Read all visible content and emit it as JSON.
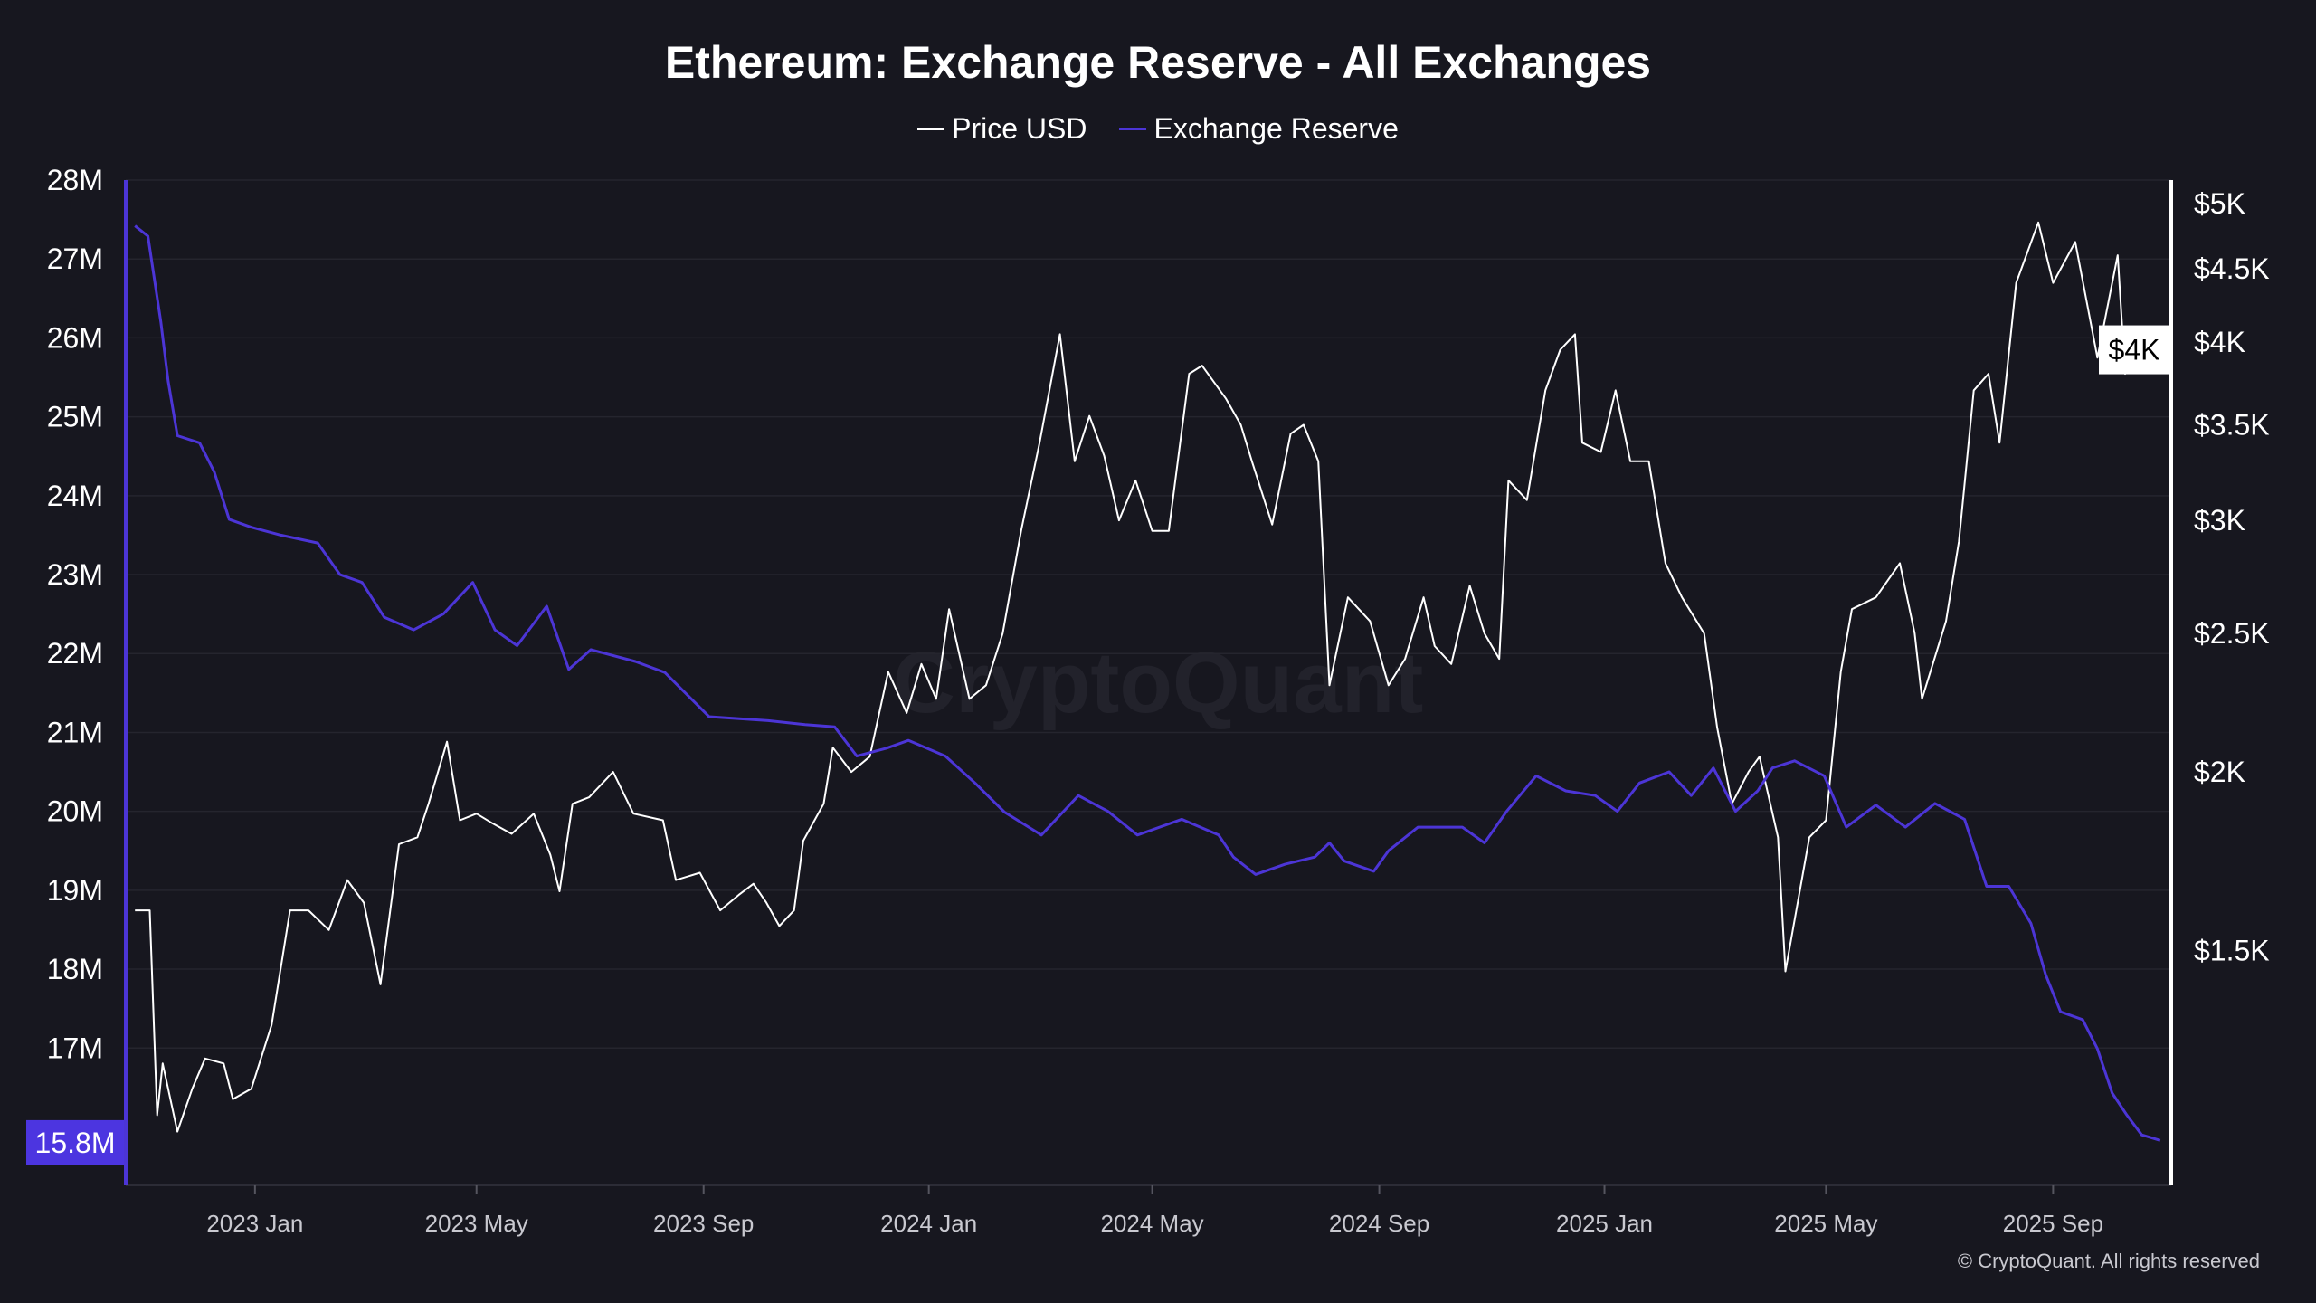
{
  "chart_data": {
    "type": "line",
    "title": "Ethereum: Exchange Reserve - All Exchanges",
    "legend_position": "top-center",
    "grid": true,
    "xlim": [
      "2022-10-23",
      "2025-11-04"
    ],
    "x_ticks": [
      {
        "date": "2023-01-01",
        "label": "2023 Jan"
      },
      {
        "date": "2023-05-01",
        "label": "2023 May"
      },
      {
        "date": "2023-09-01",
        "label": "2023 Sep"
      },
      {
        "date": "2024-01-01",
        "label": "2024 Jan"
      },
      {
        "date": "2024-05-01",
        "label": "2024 May"
      },
      {
        "date": "2024-09-01",
        "label": "2024 Sep"
      },
      {
        "date": "2025-01-01",
        "label": "2025 Jan"
      },
      {
        "date": "2025-05-01",
        "label": "2025 May"
      },
      {
        "date": "2025-09-01",
        "label": "2025 Sep"
      }
    ],
    "left_axis": {
      "series": "Exchange Reserve",
      "ylim": [
        15.26,
        28.0
      ],
      "ticks": [
        {
          "value": 28,
          "label": "28M"
        },
        {
          "value": 27,
          "label": "27M"
        },
        {
          "value": 26,
          "label": "26M"
        },
        {
          "value": 25,
          "label": "25M"
        },
        {
          "value": 24,
          "label": "24M"
        },
        {
          "value": 23,
          "label": "23M"
        },
        {
          "value": 22,
          "label": "22M"
        },
        {
          "value": 21,
          "label": "21M"
        },
        {
          "value": 20,
          "label": "20M"
        },
        {
          "value": 19,
          "label": "19M"
        },
        {
          "value": 18,
          "label": "18M"
        },
        {
          "value": 17,
          "label": "17M"
        }
      ],
      "current_label": "15.8M",
      "current_value": 15.8
    },
    "right_axis": {
      "series": "Price USD",
      "scale": "log",
      "ylim": [
        1027,
        5193
      ],
      "ticks": [
        {
          "value": 5000,
          "label": "$5K"
        },
        {
          "value": 4500,
          "label": "$4.5K"
        },
        {
          "value": 4000,
          "label": "$4K"
        },
        {
          "value": 3500,
          "label": "$3.5K"
        },
        {
          "value": 3000,
          "label": "$3K"
        },
        {
          "value": 2500,
          "label": "$2.5K"
        },
        {
          "value": 2000,
          "label": "$2K"
        },
        {
          "value": 1500,
          "label": "$1.5K"
        }
      ],
      "current_label": "$4K",
      "current_value": 3950
    },
    "series": [
      {
        "name": "Price USD",
        "color": "#ffffff",
        "axis": "right",
        "points": [
          [
            "2022-10-28",
            1600
          ],
          [
            "2022-11-05",
            1600
          ],
          [
            "2022-11-09",
            1150
          ],
          [
            "2022-11-12",
            1250
          ],
          [
            "2022-11-20",
            1120
          ],
          [
            "2022-11-28",
            1200
          ],
          [
            "2022-12-05",
            1260
          ],
          [
            "2022-12-15",
            1250
          ],
          [
            "2022-12-20",
            1180
          ],
          [
            "2022-12-30",
            1200
          ],
          [
            "2023-01-10",
            1330
          ],
          [
            "2023-01-20",
            1600
          ],
          [
            "2023-01-30",
            1600
          ],
          [
            "2023-02-10",
            1550
          ],
          [
            "2023-02-20",
            1680
          ],
          [
            "2023-03-01",
            1620
          ],
          [
            "2023-03-10",
            1420
          ],
          [
            "2023-03-20",
            1780
          ],
          [
            "2023-03-30",
            1800
          ],
          [
            "2023-04-05",
            1900
          ],
          [
            "2023-04-15",
            2100
          ],
          [
            "2023-04-22",
            1850
          ],
          [
            "2023-05-01",
            1870
          ],
          [
            "2023-05-10",
            1840
          ],
          [
            "2023-05-20",
            1810
          ],
          [
            "2023-06-01",
            1870
          ],
          [
            "2023-06-10",
            1750
          ],
          [
            "2023-06-15",
            1650
          ],
          [
            "2023-06-22",
            1900
          ],
          [
            "2023-07-01",
            1920
          ],
          [
            "2023-07-14",
            2000
          ],
          [
            "2023-07-25",
            1870
          ],
          [
            "2023-08-10",
            1850
          ],
          [
            "2023-08-17",
            1680
          ],
          [
            "2023-08-30",
            1700
          ],
          [
            "2023-09-10",
            1600
          ],
          [
            "2023-09-20",
            1640
          ],
          [
            "2023-09-28",
            1670
          ],
          [
            "2023-10-05",
            1620
          ],
          [
            "2023-10-12",
            1560
          ],
          [
            "2023-10-20",
            1600
          ],
          [
            "2023-10-25",
            1790
          ],
          [
            "2023-11-05",
            1900
          ],
          [
            "2023-11-10",
            2080
          ],
          [
            "2023-11-20",
            2000
          ],
          [
            "2023-11-30",
            2050
          ],
          [
            "2023-12-10",
            2350
          ],
          [
            "2023-12-20",
            2200
          ],
          [
            "2023-12-28",
            2380
          ],
          [
            "2024-01-05",
            2250
          ],
          [
            "2024-01-12",
            2600
          ],
          [
            "2024-01-23",
            2250
          ],
          [
            "2024-02-01",
            2300
          ],
          [
            "2024-02-10",
            2500
          ],
          [
            "2024-02-20",
            2950
          ],
          [
            "2024-03-01",
            3400
          ],
          [
            "2024-03-12",
            4050
          ],
          [
            "2024-03-20",
            3300
          ],
          [
            "2024-03-28",
            3550
          ],
          [
            "2024-04-05",
            3330
          ],
          [
            "2024-04-13",
            3000
          ],
          [
            "2024-04-22",
            3200
          ],
          [
            "2024-05-01",
            2950
          ],
          [
            "2024-05-10",
            2950
          ],
          [
            "2024-05-21",
            3800
          ],
          [
            "2024-05-28",
            3850
          ],
          [
            "2024-06-10",
            3650
          ],
          [
            "2024-06-18",
            3500
          ],
          [
            "2024-06-24",
            3300
          ],
          [
            "2024-07-05",
            2980
          ],
          [
            "2024-07-15",
            3450
          ],
          [
            "2024-07-22",
            3500
          ],
          [
            "2024-07-30",
            3300
          ],
          [
            "2024-08-05",
            2300
          ],
          [
            "2024-08-15",
            2650
          ],
          [
            "2024-08-27",
            2550
          ],
          [
            "2024-09-06",
            2300
          ],
          [
            "2024-09-15",
            2400
          ],
          [
            "2024-09-25",
            2650
          ],
          [
            "2024-10-01",
            2450
          ],
          [
            "2024-10-10",
            2380
          ],
          [
            "2024-10-20",
            2700
          ],
          [
            "2024-10-28",
            2500
          ],
          [
            "2024-11-05",
            2400
          ],
          [
            "2024-11-10",
            3200
          ],
          [
            "2024-11-20",
            3100
          ],
          [
            "2024-11-30",
            3700
          ],
          [
            "2024-12-08",
            3950
          ],
          [
            "2024-12-16",
            4050
          ],
          [
            "2024-12-20",
            3400
          ],
          [
            "2024-12-30",
            3350
          ],
          [
            "2025-01-07",
            3700
          ],
          [
            "2025-01-15",
            3300
          ],
          [
            "2025-01-25",
            3300
          ],
          [
            "2025-02-03",
            2800
          ],
          [
            "2025-02-12",
            2650
          ],
          [
            "2025-02-24",
            2500
          ],
          [
            "2025-03-03",
            2150
          ],
          [
            "2025-03-11",
            1900
          ],
          [
            "2025-03-20",
            2000
          ],
          [
            "2025-03-26",
            2050
          ],
          [
            "2025-04-05",
            1800
          ],
          [
            "2025-04-09",
            1450
          ],
          [
            "2025-04-22",
            1800
          ],
          [
            "2025-05-01",
            1850
          ],
          [
            "2025-05-09",
            2350
          ],
          [
            "2025-05-15",
            2600
          ],
          [
            "2025-05-28",
            2650
          ],
          [
            "2025-06-10",
            2800
          ],
          [
            "2025-06-18",
            2500
          ],
          [
            "2025-06-22",
            2250
          ],
          [
            "2025-07-05",
            2550
          ],
          [
            "2025-07-12",
            2900
          ],
          [
            "2025-07-20",
            3700
          ],
          [
            "2025-07-28",
            3800
          ],
          [
            "2025-08-03",
            3400
          ],
          [
            "2025-08-12",
            4400
          ],
          [
            "2025-08-24",
            4850
          ],
          [
            "2025-09-01",
            4400
          ],
          [
            "2025-09-13",
            4700
          ],
          [
            "2025-09-25",
            3900
          ],
          [
            "2025-10-06",
            4600
          ],
          [
            "2025-10-10",
            3800
          ],
          [
            "2025-10-20",
            3950
          ],
          [
            "2025-10-29",
            3950
          ]
        ]
      },
      {
        "name": "Exchange Reserve",
        "color": "#4c35d6",
        "axis": "left",
        "points": [
          [
            "2022-10-28",
            27.42
          ],
          [
            "2022-11-04",
            27.29
          ],
          [
            "2022-11-11",
            26.2
          ],
          [
            "2022-11-15",
            25.45
          ],
          [
            "2022-11-20",
            24.76
          ],
          [
            "2022-12-02",
            24.67
          ],
          [
            "2022-12-10",
            24.3
          ],
          [
            "2022-12-18",
            23.7
          ],
          [
            "2022-12-30",
            23.6
          ],
          [
            "2023-01-15",
            23.5
          ],
          [
            "2023-02-04",
            23.4
          ],
          [
            "2023-02-16",
            23.0
          ],
          [
            "2023-02-28",
            22.9
          ],
          [
            "2023-03-12",
            22.46
          ],
          [
            "2023-03-28",
            22.3
          ],
          [
            "2023-04-13",
            22.5
          ],
          [
            "2023-04-29",
            22.9
          ],
          [
            "2023-05-11",
            22.3
          ],
          [
            "2023-05-23",
            22.1
          ],
          [
            "2023-06-08",
            22.6
          ],
          [
            "2023-06-20",
            21.8
          ],
          [
            "2023-07-02",
            22.05
          ],
          [
            "2023-07-26",
            21.9
          ],
          [
            "2023-08-11",
            21.76
          ],
          [
            "2023-08-23",
            21.48
          ],
          [
            "2023-09-04",
            21.2
          ],
          [
            "2023-10-06",
            21.15
          ],
          [
            "2023-10-26",
            21.1
          ],
          [
            "2023-11-11",
            21.07
          ],
          [
            "2023-11-23",
            20.7
          ],
          [
            "2023-12-09",
            20.8
          ],
          [
            "2023-12-21",
            20.9
          ],
          [
            "2024-01-10",
            20.7
          ],
          [
            "2024-01-26",
            20.36
          ],
          [
            "2024-02-11",
            19.99
          ],
          [
            "2024-03-02",
            19.7
          ],
          [
            "2024-03-22",
            20.2
          ],
          [
            "2024-04-07",
            20.0
          ],
          [
            "2024-04-23",
            19.7
          ],
          [
            "2024-05-17",
            19.9
          ],
          [
            "2024-06-06",
            19.7
          ],
          [
            "2024-06-14",
            19.42
          ],
          [
            "2024-06-26",
            19.2
          ],
          [
            "2024-07-12",
            19.33
          ],
          [
            "2024-07-28",
            19.42
          ],
          [
            "2024-08-05",
            19.6
          ],
          [
            "2024-08-13",
            19.37
          ],
          [
            "2024-08-29",
            19.24
          ],
          [
            "2024-09-06",
            19.5
          ],
          [
            "2024-09-22",
            19.8
          ],
          [
            "2024-10-16",
            19.8
          ],
          [
            "2024-10-28",
            19.6
          ],
          [
            "2024-11-09",
            20.0
          ],
          [
            "2024-11-25",
            20.45
          ],
          [
            "2024-12-11",
            20.26
          ],
          [
            "2024-12-27",
            20.2
          ],
          [
            "2025-01-08",
            20.0
          ],
          [
            "2025-01-20",
            20.36
          ],
          [
            "2025-02-05",
            20.5
          ],
          [
            "2025-02-17",
            20.2
          ],
          [
            "2025-03-01",
            20.55
          ],
          [
            "2025-03-13",
            20.0
          ],
          [
            "2025-03-25",
            20.26
          ],
          [
            "2025-04-02",
            20.55
          ],
          [
            "2025-04-14",
            20.64
          ],
          [
            "2025-04-30",
            20.45
          ],
          [
            "2025-05-12",
            19.8
          ],
          [
            "2025-05-28",
            20.08
          ],
          [
            "2025-06-13",
            19.8
          ],
          [
            "2025-06-29",
            20.1
          ],
          [
            "2025-07-15",
            19.9
          ],
          [
            "2025-07-27",
            19.05
          ],
          [
            "2025-08-08",
            19.05
          ],
          [
            "2025-08-20",
            18.58
          ],
          [
            "2025-08-28",
            17.93
          ],
          [
            "2025-09-05",
            17.46
          ],
          [
            "2025-09-17",
            17.36
          ],
          [
            "2025-09-25",
            16.99
          ],
          [
            "2025-10-03",
            16.43
          ],
          [
            "2025-10-11",
            16.15
          ],
          [
            "2025-10-19",
            15.9
          ],
          [
            "2025-10-29",
            15.83
          ]
        ]
      }
    ]
  },
  "legend": [
    {
      "label": "Price USD",
      "color": "#ffffff"
    },
    {
      "label": "Exchange Reserve",
      "color": "#4c35d6"
    }
  ],
  "watermark": "CryptoQuant",
  "copyright": "© CryptoQuant. All rights reserved"
}
